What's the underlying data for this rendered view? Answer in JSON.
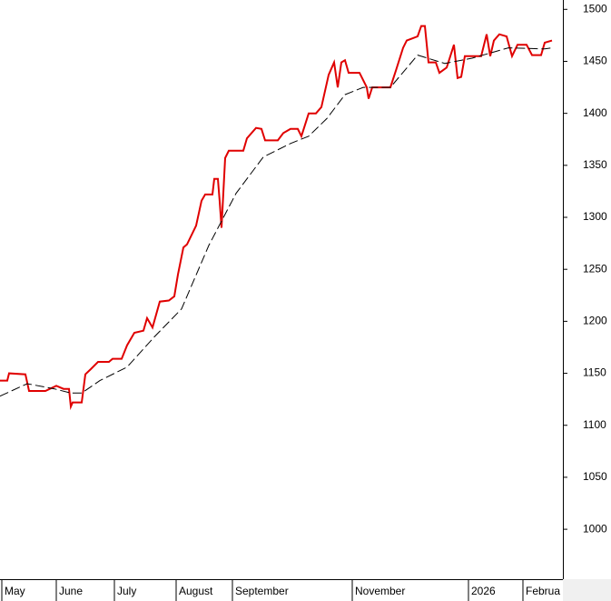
{
  "chart_data": {
    "type": "line",
    "x_is_numeric": true,
    "xlim": [
      0,
      310
    ],
    "xticks": [
      {
        "value": 1,
        "label": "May"
      },
      {
        "value": 31,
        "label": "June"
      },
      {
        "value": 63,
        "label": "July"
      },
      {
        "value": 97,
        "label": "August"
      },
      {
        "value": 128,
        "label": "September"
      },
      {
        "value": 194,
        "label": "November"
      },
      {
        "value": 258,
        "label": "2026"
      },
      {
        "value": 288,
        "label": "Februa"
      }
    ],
    "ylim": [
      952,
      1509
    ],
    "yticks": [
      1000,
      1050,
      1100,
      1150,
      1200,
      1250,
      1300,
      1350,
      1400,
      1450,
      1500
    ],
    "series": [
      {
        "color": "#e00000",
        "dashed": false,
        "x": [
          0,
          4,
          5,
          14,
          16,
          25,
          31,
          35,
          38,
          39,
          40,
          45,
          47,
          50,
          54,
          60,
          62,
          67,
          70,
          74,
          79,
          81,
          84,
          88,
          93,
          96,
          98,
          101,
          103,
          108,
          111,
          113,
          117,
          118,
          120,
          121,
          122,
          124,
          126,
          134,
          136,
          141,
          144,
          146,
          153,
          156,
          160,
          164,
          166,
          170,
          174,
          177,
          181,
          184,
          186,
          188,
          190,
          192,
          198,
          202,
          203,
          205,
          215,
          218,
          222,
          224,
          227,
          230,
          232,
          234,
          236,
          240,
          242,
          246,
          248,
          250,
          252,
          254,
          256,
          265,
          268,
          270,
          272,
          275,
          279,
          282,
          285,
          290,
          293,
          298,
          300,
          304
        ],
        "values": [
          1143,
          1143,
          1150,
          1149,
          1133,
          1133,
          1138,
          1135,
          1135,
          1118,
          1122,
          1122,
          1149,
          1154,
          1161,
          1161,
          1164,
          1164,
          1177,
          1189,
          1191,
          1203,
          1194,
          1219,
          1220,
          1224,
          1245,
          1271,
          1274,
          1292,
          1316,
          1322,
          1322,
          1337,
          1337,
          1315,
          1290,
          1357,
          1364,
          1364,
          1376,
          1386,
          1385,
          1374,
          1374,
          1381,
          1385,
          1385,
          1378,
          1400,
          1400,
          1406,
          1437,
          1449,
          1425,
          1449,
          1451,
          1439,
          1439,
          1425,
          1414,
          1425,
          1425,
          1441,
          1463,
          1470,
          1472,
          1474,
          1484,
          1484,
          1449,
          1449,
          1439,
          1444,
          1455,
          1466,
          1434,
          1435,
          1455,
          1455,
          1476,
          1455,
          1470,
          1476,
          1474,
          1455,
          1466,
          1466,
          1456,
          1456,
          1468,
          1470
        ]
      },
      {
        "color": "#000000",
        "dashed": true,
        "x": [
          0,
          15,
          30,
          39,
          45,
          55,
          70,
          85,
          100,
          115,
          130,
          145,
          160,
          170,
          180,
          190,
          200,
          215,
          230,
          245,
          260,
          280,
          300,
          304
        ],
        "values": [
          1128,
          1140,
          1135,
          1131,
          1131,
          1143,
          1156,
          1185,
          1212,
          1273,
          1323,
          1358,
          1371,
          1378,
          1395,
          1418,
          1425,
          1425,
          1456,
          1448,
          1453,
          1463,
          1462,
          1463
        ]
      }
    ]
  }
}
